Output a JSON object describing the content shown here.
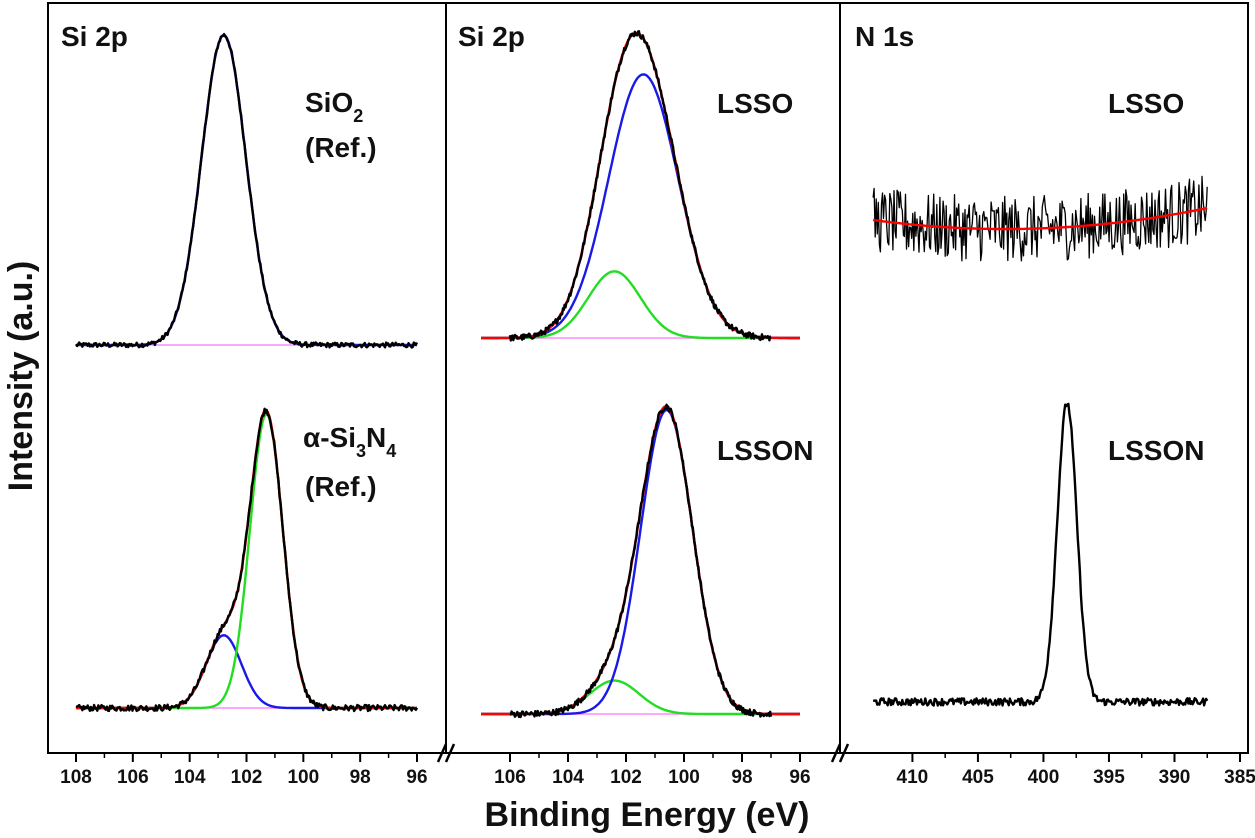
{
  "chart_data": {
    "type": "line",
    "xlabel": "Binding Energy (eV)",
    "ylabel": "Intensity (a.u.)",
    "colors": {
      "data": "#000000",
      "envelope": "#ff0000",
      "component_blue": "#1a1ae6",
      "component_green": "#22dd22",
      "background": "#ff88ff"
    },
    "panels": [
      {
        "title": "Si 2p",
        "xlim": [
          108,
          96
        ],
        "xticks": [
          "108",
          "106",
          "104",
          "102",
          "100",
          "98",
          "96"
        ],
        "spectra": [
          {
            "label_main": "SiO",
            "label_sub": "2",
            "label_line2": "(Ref.)",
            "components": [
              {
                "role": "background",
                "color": "#ff88ff",
                "type": "flat",
                "level": 0.0
              },
              {
                "role": "fit",
                "color": "#1a1ae6",
                "type": "gauss",
                "peaks": [
                  {
                    "center": 102.8,
                    "amp": 1.0,
                    "sigma": 0.78
                  }
                ]
              },
              {
                "role": "data",
                "color": "#000000",
                "type": "noisy",
                "peaks": [
                  {
                    "center": 102.8,
                    "amp": 1.0,
                    "sigma": 0.78
                  }
                ],
                "noise": 0.008,
                "xrange": [
                  108,
                  96
                ]
              }
            ]
          },
          {
            "label_main": "α-Si",
            "label_sub1": "3",
            "label_mid": "N",
            "label_sub2": "4",
            "label_line2": "(Ref.)",
            "components": [
              {
                "role": "background",
                "color": "#ff88ff",
                "type": "flat",
                "level": 0.0
              },
              {
                "role": "fit",
                "color": "#1a1ae6",
                "type": "gauss",
                "peaks": [
                  {
                    "center": 102.8,
                    "amp": 0.24,
                    "sigma": 0.62
                  }
                ]
              },
              {
                "role": "fit",
                "color": "#22dd22",
                "type": "gauss",
                "peaks": [
                  {
                    "center": 101.3,
                    "amp": 0.97,
                    "sigma": 0.58
                  }
                ]
              },
              {
                "role": "envelope",
                "color": "#ff0000",
                "type": "gauss",
                "peaks": [
                  {
                    "center": 102.8,
                    "amp": 0.24,
                    "sigma": 0.62
                  },
                  {
                    "center": 101.3,
                    "amp": 0.97,
                    "sigma": 0.58
                  }
                ]
              },
              {
                "role": "data",
                "color": "#000000",
                "type": "noisy",
                "peaks": [
                  {
                    "center": 102.8,
                    "amp": 0.24,
                    "sigma": 0.62
                  },
                  {
                    "center": 101.3,
                    "amp": 0.97,
                    "sigma": 0.58
                  }
                ],
                "noise": 0.01,
                "xrange": [
                  108,
                  96
                ]
              }
            ]
          }
        ]
      },
      {
        "title": "Si 2p",
        "xlim": [
          107,
          96
        ],
        "xticks": [
          "106",
          "104",
          "102",
          "100",
          "98",
          "96"
        ],
        "spectra": [
          {
            "label_main": "LSSO",
            "components": [
              {
                "role": "background",
                "color": "#ff88ff",
                "type": "flat",
                "level": 0.0
              },
              {
                "role": "fit",
                "color": "#22dd22",
                "type": "gauss",
                "peaks": [
                  {
                    "center": 102.4,
                    "amp": 0.22,
                    "sigma": 0.9
                  }
                ]
              },
              {
                "role": "fit",
                "color": "#1a1ae6",
                "type": "gauss",
                "peaks": [
                  {
                    "center": 101.4,
                    "amp": 0.87,
                    "sigma": 1.2
                  }
                ]
              },
              {
                "role": "envelope",
                "color": "#ff0000",
                "type": "gauss",
                "peaks": [
                  {
                    "center": 102.4,
                    "amp": 0.22,
                    "sigma": 0.9
                  },
                  {
                    "center": 101.4,
                    "amp": 0.87,
                    "sigma": 1.2
                  }
                ]
              },
              {
                "role": "data",
                "color": "#000000",
                "type": "noisy",
                "peaks": [
                  {
                    "center": 102.4,
                    "amp": 0.22,
                    "sigma": 0.9
                  },
                  {
                    "center": 101.4,
                    "amp": 0.87,
                    "sigma": 1.2
                  }
                ],
                "noise": 0.01,
                "xrange": [
                  106,
                  97
                ]
              }
            ]
          },
          {
            "label_main": "LSSON",
            "components": [
              {
                "role": "background",
                "color": "#ff88ff",
                "type": "flat",
                "level": 0.0
              },
              {
                "role": "fit",
                "color": "#22dd22",
                "type": "gauss",
                "peaks": [
                  {
                    "center": 102.4,
                    "amp": 0.11,
                    "sigma": 0.85
                  }
                ]
              },
              {
                "role": "fit",
                "color": "#1a1ae6",
                "type": "gauss",
                "peaks": [
                  {
                    "center": 100.6,
                    "amp": 1.0,
                    "sigma": 0.9
                  }
                ]
              },
              {
                "role": "envelope",
                "color": "#ff0000",
                "type": "gauss",
                "peaks": [
                  {
                    "center": 102.4,
                    "amp": 0.11,
                    "sigma": 0.85
                  },
                  {
                    "center": 100.6,
                    "amp": 1.0,
                    "sigma": 0.9
                  }
                ]
              },
              {
                "role": "data",
                "color": "#000000",
                "type": "noisy",
                "peaks": [
                  {
                    "center": 102.4,
                    "amp": 0.11,
                    "sigma": 0.85
                  },
                  {
                    "center": 100.6,
                    "amp": 1.0,
                    "sigma": 0.9
                  }
                ],
                "noise": 0.01,
                "xrange": [
                  106,
                  97
                ]
              }
            ]
          }
        ]
      },
      {
        "title": "N 1s",
        "xlim": [
          414,
          385
        ],
        "xticks": [
          "410",
          "405",
          "400",
          "395",
          "390",
          "385"
        ],
        "spectra": [
          {
            "label_main": "LSSO",
            "components": [
              {
                "role": "data",
                "color": "#000000",
                "type": "noisy",
                "flat_level": 0.05,
                "noise": 0.055,
                "bow": 0.04,
                "xrange": [
                  413,
                  387.5
                ]
              },
              {
                "role": "envelope",
                "color": "#ff0000",
                "type": "smooth",
                "flat_level": 0.05,
                "bow": 0.04,
                "xrange": [
                  413,
                  387.5
                ]
              }
            ]
          },
          {
            "label_main": "LSSON",
            "components": [
              {
                "role": "data",
                "color": "#000000",
                "type": "noisy",
                "peaks": [
                  {
                    "center": 398.2,
                    "amp": 0.98,
                    "sigma": 0.75
                  }
                ],
                "flat_level": 0.03,
                "noise": 0.012,
                "xrange": [
                  413,
                  387.5
                ]
              }
            ]
          }
        ]
      }
    ]
  }
}
